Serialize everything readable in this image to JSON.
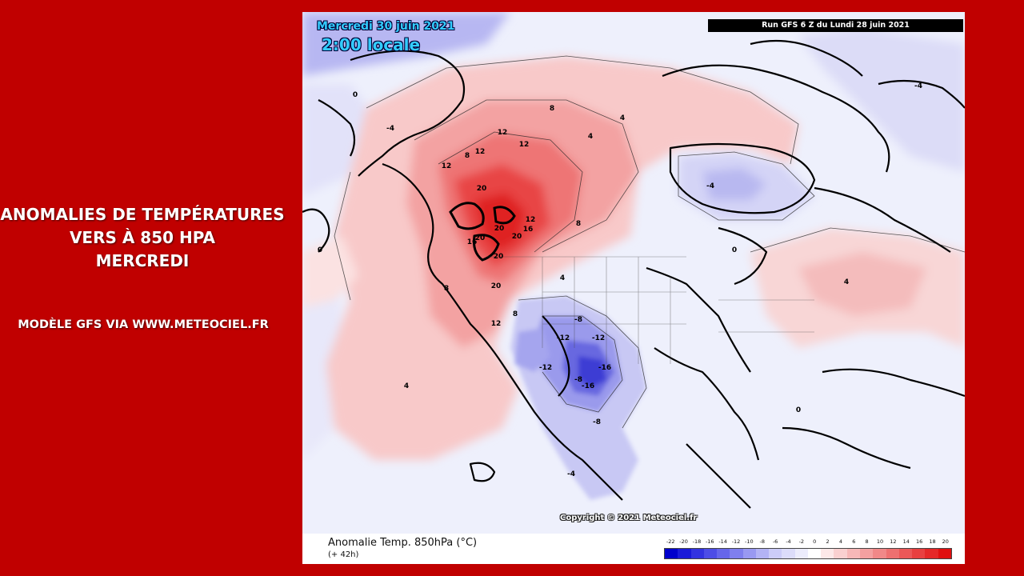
{
  "side_panel": {
    "title_lines": [
      "ANOMALIES DE TEMPÉRATURES",
      "VERS À 850 HPA",
      "MERCREDI"
    ],
    "credit": "MODÈLE GFS VIA WWW.METEOCIEL.FR"
  },
  "map": {
    "date": "Mercredi 30 juin 2021",
    "local_time": "2:00 locale",
    "run_info": "Run GFS 6 Z du Lundi 28 juin 2021",
    "copyright": "Copyright © 2021 Meteociel.fr",
    "caption": "Anomalie Temp. 850hPa (°C)",
    "subcaption": "(+ 42h)",
    "legend": {
      "ticks": [
        "-22",
        "-20",
        "-18",
        "-16",
        "-14",
        "-12",
        "-10",
        "-8",
        "-6",
        "-4",
        "-2",
        "0",
        "2",
        "4",
        "6",
        "8",
        "10",
        "12",
        "14",
        "16",
        "18",
        "20"
      ],
      "colors": [
        "#0000cc",
        "#1a1ad9",
        "#3333e0",
        "#4d4de6",
        "#6666ea",
        "#7f7fee",
        "#9999f2",
        "#b3b3f5",
        "#ccccf8",
        "#dcdcfa",
        "#ececfc",
        "#ffffff",
        "#fde8e8",
        "#fad0d0",
        "#f7b8b8",
        "#f4a0a0",
        "#f18888",
        "#ee7070",
        "#eb5858",
        "#e84040",
        "#e52828",
        "#e01010"
      ]
    },
    "contour_labels": [
      "20",
      "20",
      "20",
      "20",
      "20",
      "20",
      "16",
      "16",
      "12",
      "12",
      "12",
      "12",
      "12",
      "12",
      "8",
      "8",
      "8",
      "8",
      "8",
      "4",
      "4",
      "4",
      "4",
      "4",
      "0",
      "0",
      "0",
      "0",
      "-4",
      "-4",
      "-4",
      "-4",
      "-8",
      "-8",
      "-12",
      "-12",
      "-16",
      "-16",
      "-12",
      "-8"
    ]
  }
}
